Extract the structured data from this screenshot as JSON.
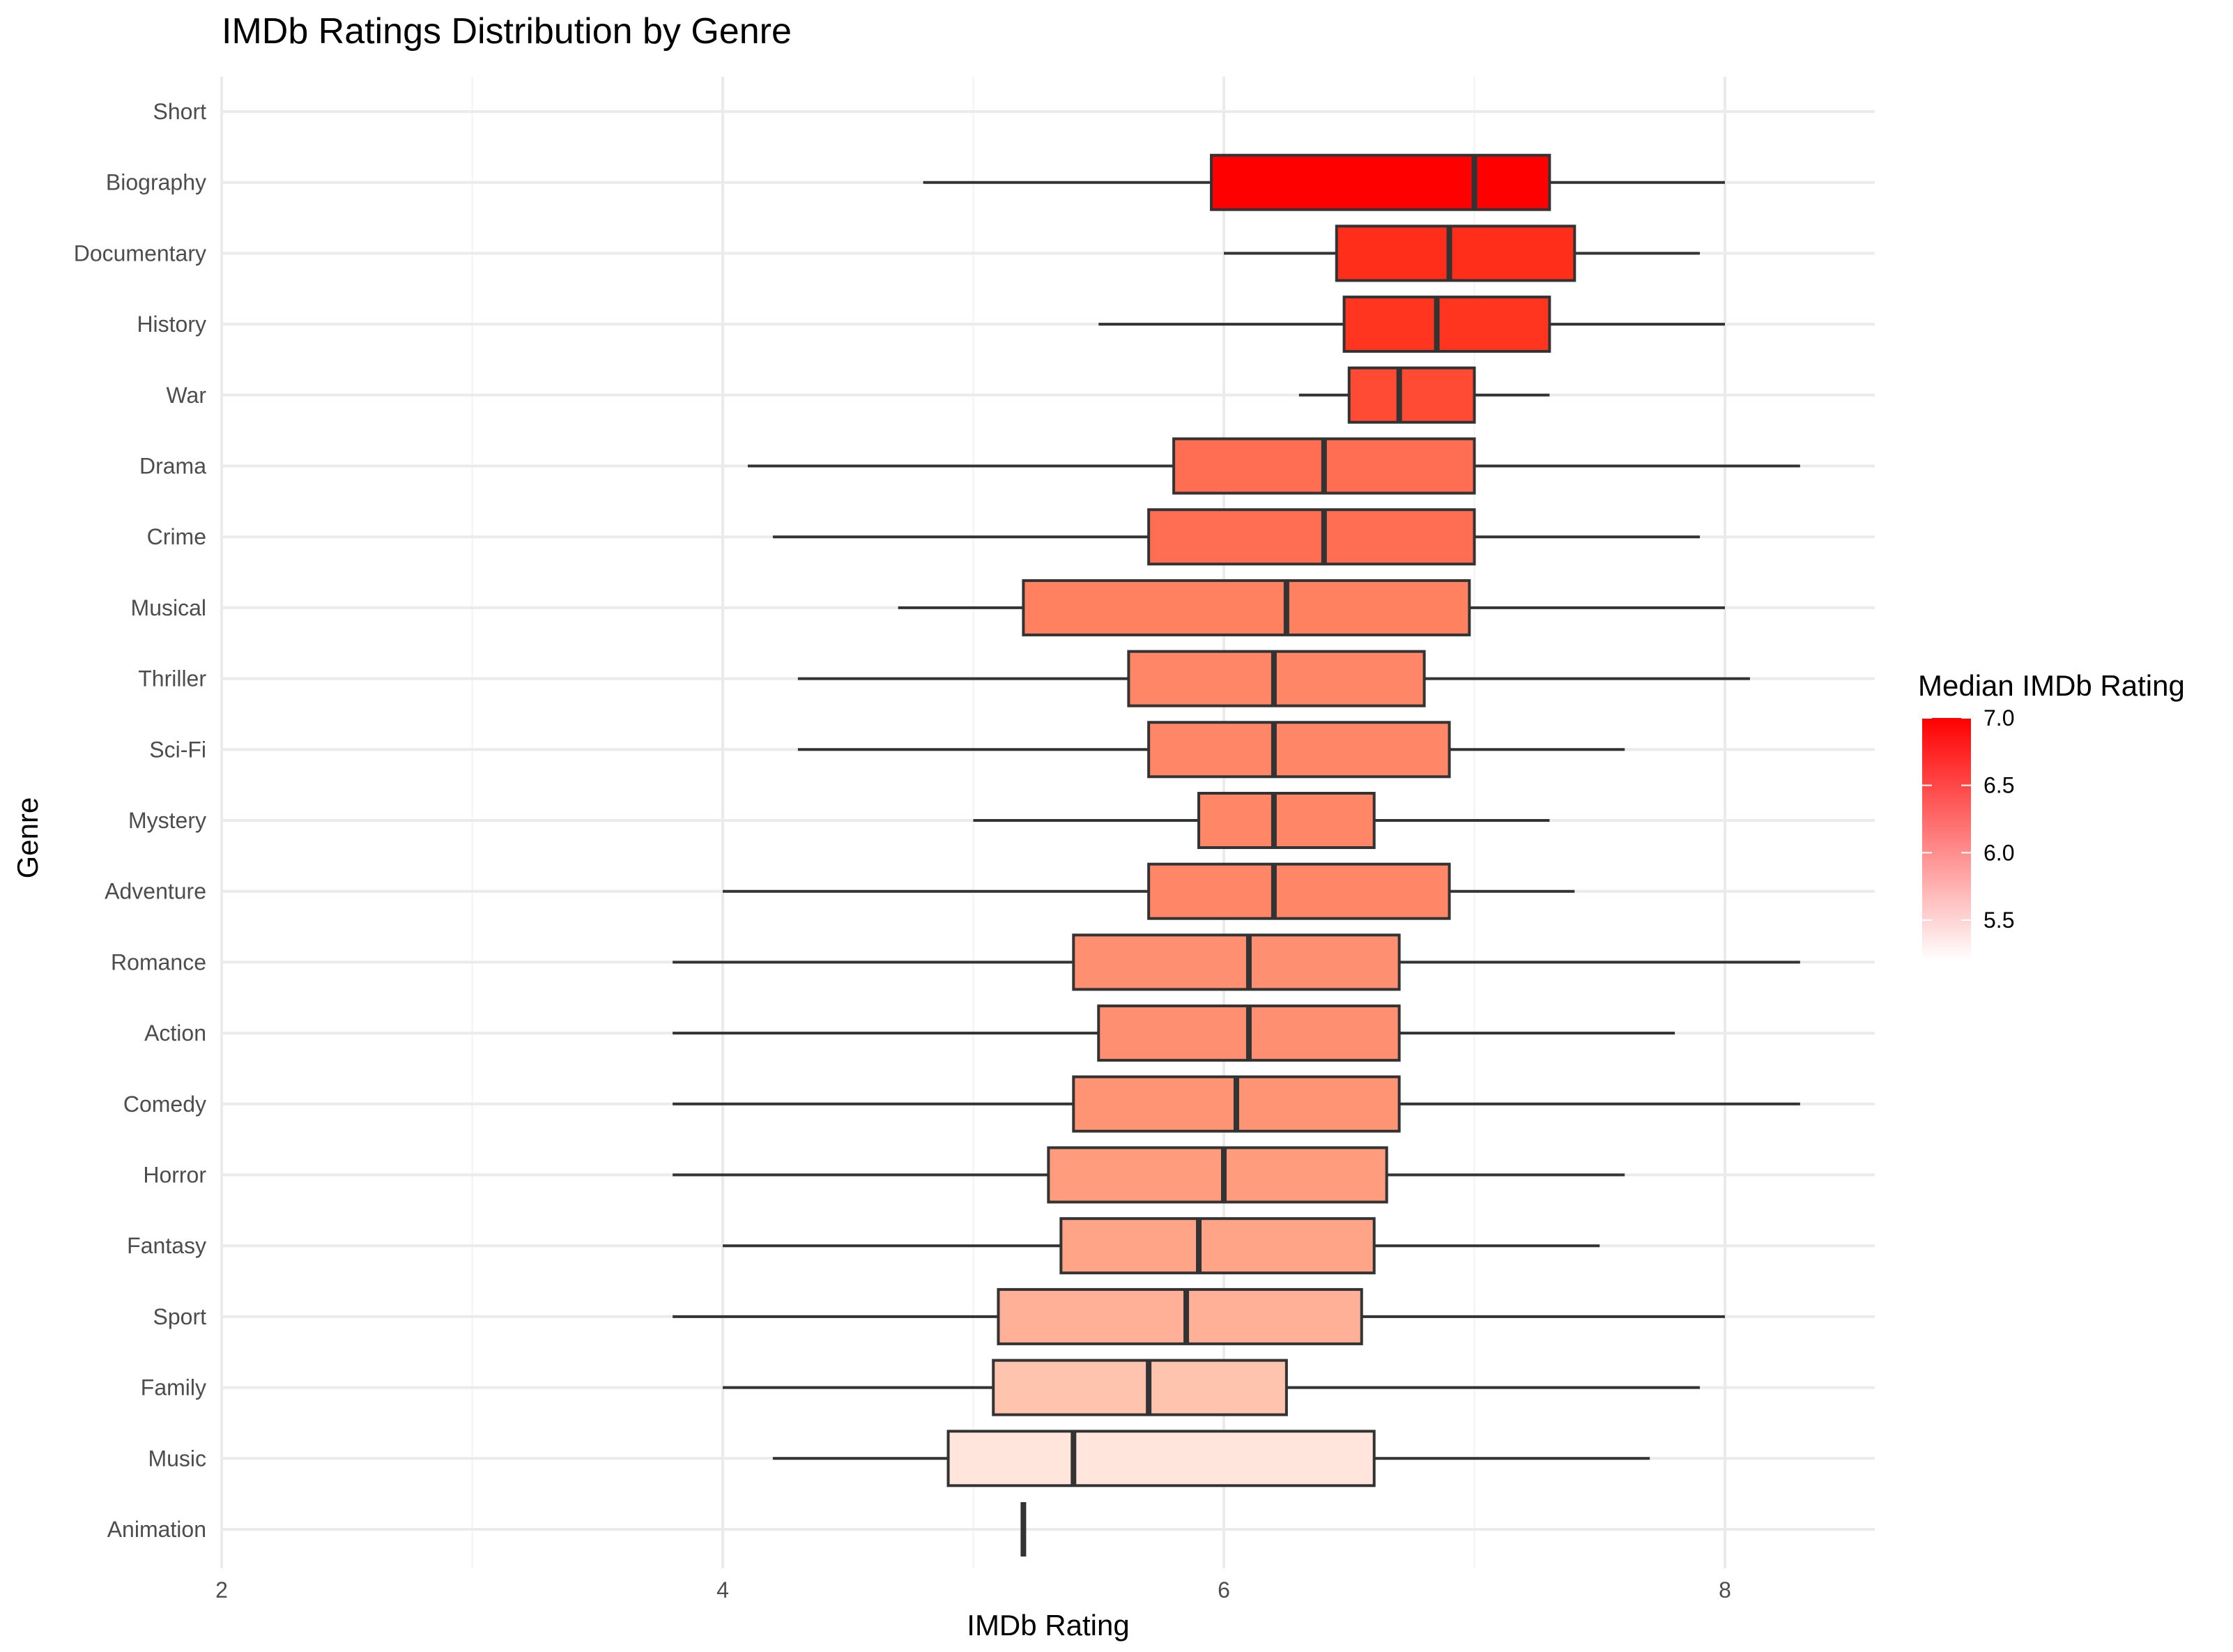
{
  "chart_data": {
    "type": "boxplot",
    "title": "IMDb Ratings Distribution by Genre",
    "xlabel": "IMDb Rating",
    "ylabel": "Genre",
    "xlim": [
      2,
      8.6
    ],
    "x_ticks": [
      2,
      4,
      6,
      8
    ],
    "grid": true,
    "categories": [
      "Short",
      "Biography",
      "Documentary",
      "History",
      "War",
      "Drama",
      "Crime",
      "Musical",
      "Thriller",
      "Sci-Fi",
      "Mystery",
      "Adventure",
      "Romance",
      "Action",
      "Comedy",
      "Horror",
      "Fantasy",
      "Sport",
      "Family",
      "Music",
      "Animation"
    ],
    "series": [
      {
        "genre": "Short",
        "whisker_low": null,
        "q1": null,
        "median": null,
        "q3": null,
        "whisker_high": null,
        "fill": "#ffffff"
      },
      {
        "genre": "Biography",
        "whisker_low": 4.8,
        "q1": 5.95,
        "median": 7.0,
        "q3": 7.3,
        "whisker_high": 8.0,
        "fill": "#ff0000"
      },
      {
        "genre": "Documentary",
        "whisker_low": 6.0,
        "q1": 6.45,
        "median": 6.9,
        "q3": 7.4,
        "whisker_high": 7.9,
        "fill": "#ff2e1a"
      },
      {
        "genre": "History",
        "whisker_low": 5.5,
        "q1": 6.48,
        "median": 6.85,
        "q3": 7.3,
        "whisker_high": 8.0,
        "fill": "#ff3520"
      },
      {
        "genre": "War",
        "whisker_low": 6.3,
        "q1": 6.5,
        "median": 6.7,
        "q3": 7.0,
        "whisker_high": 7.3,
        "fill": "#ff4a34"
      },
      {
        "genre": "Drama",
        "whisker_low": 4.1,
        "q1": 5.8,
        "median": 6.4,
        "q3": 7.0,
        "whisker_high": 8.3,
        "fill": "#ff6e52"
      },
      {
        "genre": "Crime",
        "whisker_low": 4.2,
        "q1": 5.7,
        "median": 6.4,
        "q3": 7.0,
        "whisker_high": 7.9,
        "fill": "#ff6e52"
      },
      {
        "genre": "Musical",
        "whisker_low": 4.7,
        "q1": 5.2,
        "median": 6.25,
        "q3": 6.98,
        "whisker_high": 8.0,
        "fill": "#ff8160"
      },
      {
        "genre": "Thriller",
        "whisker_low": 4.3,
        "q1": 5.62,
        "median": 6.2,
        "q3": 6.8,
        "whisker_high": 8.1,
        "fill": "#ff8666"
      },
      {
        "genre": "Sci-Fi",
        "whisker_low": 4.3,
        "q1": 5.7,
        "median": 6.2,
        "q3": 6.9,
        "whisker_high": 7.6,
        "fill": "#ff8666"
      },
      {
        "genre": "Mystery",
        "whisker_low": 5.0,
        "q1": 5.9,
        "median": 6.2,
        "q3": 6.6,
        "whisker_high": 7.3,
        "fill": "#ff8666"
      },
      {
        "genre": "Adventure",
        "whisker_low": 4.0,
        "q1": 5.7,
        "median": 6.2,
        "q3": 6.9,
        "whisker_high": 7.4,
        "fill": "#ff8666"
      },
      {
        "genre": "Romance",
        "whisker_low": 3.8,
        "q1": 5.4,
        "median": 6.1,
        "q3": 6.7,
        "whisker_high": 8.3,
        "fill": "#ff8f70"
      },
      {
        "genre": "Action",
        "whisker_low": 3.8,
        "q1": 5.5,
        "median": 6.1,
        "q3": 6.7,
        "whisker_high": 7.8,
        "fill": "#ff8f70"
      },
      {
        "genre": "Comedy",
        "whisker_low": 3.8,
        "q1": 5.4,
        "median": 6.05,
        "q3": 6.7,
        "whisker_high": 8.3,
        "fill": "#ff9474"
      },
      {
        "genre": "Horror",
        "whisker_low": 3.8,
        "q1": 5.3,
        "median": 6.0,
        "q3": 6.65,
        "whisker_high": 7.6,
        "fill": "#ff9c7e"
      },
      {
        "genre": "Fantasy",
        "whisker_low": 4.0,
        "q1": 5.35,
        "median": 5.9,
        "q3": 6.6,
        "whisker_high": 7.5,
        "fill": "#ffa487"
      },
      {
        "genre": "Sport",
        "whisker_low": 3.8,
        "q1": 5.1,
        "median": 5.85,
        "q3": 6.55,
        "whisker_high": 8.0,
        "fill": "#ffb097"
      },
      {
        "genre": "Family",
        "whisker_low": 4.0,
        "q1": 5.08,
        "median": 5.7,
        "q3": 6.25,
        "whisker_high": 7.9,
        "fill": "#ffc4ae"
      },
      {
        "genre": "Music",
        "whisker_low": 4.2,
        "q1": 4.9,
        "median": 5.4,
        "q3": 6.6,
        "whisker_high": 7.7,
        "fill": "#ffe5dc"
      },
      {
        "genre": "Animation",
        "whisker_low": 5.2,
        "q1": 5.2,
        "median": 5.2,
        "q3": 5.2,
        "whisker_high": 5.2,
        "fill": "#ffffff"
      }
    ],
    "legend": {
      "title": "Median IMDb Rating",
      "placement": "right",
      "range": [
        5.2,
        7.0
      ],
      "breaks": [
        "7.0",
        "6.5",
        "6.0",
        "5.5"
      ],
      "color_low": "#ffffff",
      "color_high": "#ff0000"
    }
  }
}
